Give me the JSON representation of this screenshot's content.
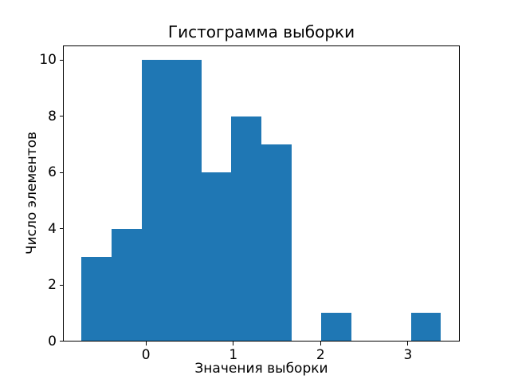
{
  "figure": {
    "background": "#ffffff"
  },
  "chart_data": {
    "type": "bar",
    "subtype": "histogram",
    "title": "Гистограмма выборки",
    "xlabel": "Значения выборки",
    "ylabel": "Число элементов",
    "bin_edges": [
      -0.737,
      -0.394,
      -0.051,
      0.292,
      0.635,
      0.978,
      1.321,
      1.664,
      2.007,
      2.35,
      2.693,
      3.036,
      3.379
    ],
    "counts": [
      3,
      4,
      10,
      10,
      6,
      8,
      7,
      0,
      1,
      0,
      0,
      1
    ],
    "xticks": [
      0,
      1,
      2,
      3
    ],
    "yticks": [
      0,
      2,
      4,
      6,
      8,
      10
    ],
    "xlim": [
      -0.942,
      3.585
    ],
    "ylim": [
      0,
      10.5
    ],
    "bar_color": "#1f77b4",
    "axis_color": "#000000",
    "text_color": "#000000",
    "grid": false
  }
}
